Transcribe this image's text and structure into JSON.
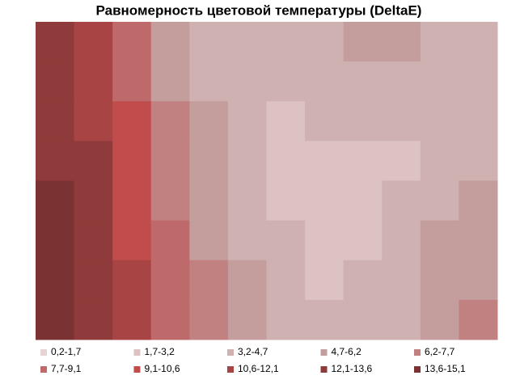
{
  "chart_data": {
    "type": "contour",
    "title": "Равномерность цветовой температуры (DeltaE)",
    "levels": [
      0.2,
      1.7,
      3.2,
      4.7,
      6.2,
      7.7,
      9.1,
      10.6,
      12.1,
      13.6,
      15.1
    ],
    "series": [
      {
        "name": "0,2-1,7",
        "color": "#e6d3d3"
      },
      {
        "name": "1,7-3,2",
        "color": "#dcc2c2"
      },
      {
        "name": "3,2-4,7",
        "color": "#cfb1b1"
      },
      {
        "name": "4,7-6,2",
        "color": "#c49d9d"
      },
      {
        "name": "6,2-7,7",
        "color": "#c18181"
      },
      {
        "name": "7,7-9,1",
        "color": "#be6a6a"
      },
      {
        "name": "9,1-10,6",
        "color": "#c04c4c"
      },
      {
        "name": "10,6-12,1",
        "color": "#a94444"
      },
      {
        "name": "12,1-13,6",
        "color": "#903b3b"
      },
      {
        "name": "13,6-15,1",
        "color": "#7a3232"
      }
    ],
    "values": [
      [
        12.8,
        11.5,
        8.5,
        5.5,
        4,
        3.5,
        4.2,
        4.5,
        4.8,
        4.8,
        4.5,
        3.8
      ],
      [
        13,
        12,
        9,
        6,
        4.5,
        3.8,
        4,
        4.5,
        4.5,
        4,
        3.8,
        3.5
      ],
      [
        13.5,
        12,
        9.5,
        6.5,
        5,
        4,
        3,
        3.5,
        3.8,
        3.5,
        3.8,
        4
      ],
      [
        13.5,
        12.5,
        10,
        7,
        5.5,
        4,
        2.5,
        2.5,
        3,
        3.2,
        4,
        4.5
      ],
      [
        14,
        12.5,
        10,
        7.5,
        5.8,
        4.2,
        3,
        2.5,
        2.8,
        3.5,
        4.5,
        5
      ],
      [
        14.5,
        13,
        10.5,
        8,
        6,
        4.5,
        3.5,
        3,
        3.2,
        4,
        5,
        5.5
      ],
      [
        14.5,
        13.5,
        11,
        8.5,
        6.5,
        5,
        4,
        3.2,
        3.5,
        4.5,
        5.5,
        6
      ],
      [
        15,
        13.5,
        11,
        8.5,
        6.5,
        5,
        4,
        3.5,
        3.8,
        4.5,
        5.5,
        6.5
      ]
    ]
  }
}
